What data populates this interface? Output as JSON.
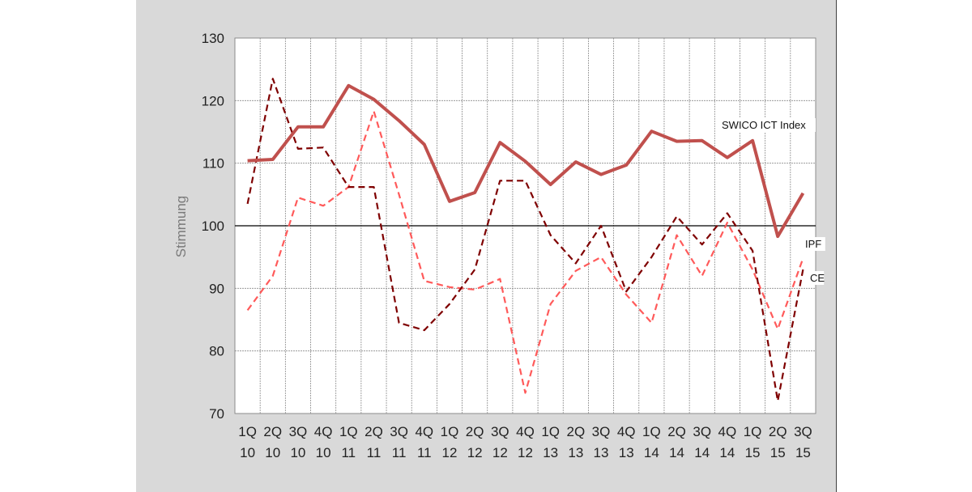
{
  "chart_data": {
    "type": "line",
    "ylabel": "Stimmung",
    "ylim": [
      70,
      130
    ],
    "yticks": [
      70,
      80,
      90,
      100,
      110,
      120,
      130
    ],
    "reference_line": 100,
    "grid": true,
    "categories": [
      [
        "1Q",
        "10"
      ],
      [
        "2Q",
        "10"
      ],
      [
        "3Q",
        "10"
      ],
      [
        "4Q",
        "10"
      ],
      [
        "1Q",
        "11"
      ],
      [
        "2Q",
        "11"
      ],
      [
        "3Q",
        "11"
      ],
      [
        "4Q",
        "11"
      ],
      [
        "1Q",
        "12"
      ],
      [
        "2Q",
        "12"
      ],
      [
        "3Q",
        "12"
      ],
      [
        "4Q",
        "12"
      ],
      [
        "1Q",
        "13"
      ],
      [
        "2Q",
        "13"
      ],
      [
        "3Q",
        "13"
      ],
      [
        "4Q",
        "13"
      ],
      [
        "1Q",
        "14"
      ],
      [
        "2Q",
        "14"
      ],
      [
        "3Q",
        "14"
      ],
      [
        "4Q",
        "14"
      ],
      [
        "1Q",
        "15"
      ],
      [
        "2Q",
        "15"
      ],
      [
        "3Q",
        "15"
      ]
    ],
    "series": [
      {
        "name": "SWICO ICT Index",
        "color": "#c0504d",
        "style": "solid",
        "values": [
          110.4,
          110.6,
          115.8,
          115.8,
          122.4,
          120.2,
          116.8,
          113.0,
          103.9,
          105.3,
          113.3,
          110.3,
          106.6,
          110.2,
          108.2,
          109.7,
          115.1,
          113.5,
          113.6,
          110.9,
          113.6,
          98.3,
          105.2
        ]
      },
      {
        "name": "IPF",
        "color": "#7f0000",
        "style": "dashed",
        "values": [
          103.5,
          123.5,
          112.3,
          112.5,
          106.2,
          106.2,
          84.5,
          83.3,
          87.5,
          93.0,
          107.2,
          107.2,
          98.5,
          94.0,
          100.0,
          89.5,
          95.0,
          101.5,
          97.0,
          102.0,
          96.0,
          72.0,
          93.0
        ]
      },
      {
        "name": "CE",
        "color": "#ff5a5a",
        "style": "dashed",
        "values": [
          86.5,
          92.0,
          104.5,
          103.2,
          106.2,
          118.3,
          105.0,
          91.2,
          90.2,
          89.8,
          91.5,
          73.3,
          87.5,
          92.8,
          95.0,
          89.0,
          84.5,
          98.5,
          92.0,
          100.5,
          93.0,
          83.5,
          94.8
        ]
      }
    ]
  },
  "colors": {
    "panel_background": "#d9d9d9",
    "plot_background": "#ffffff",
    "grid": "#8c8c8c",
    "reference_line": "#000000"
  }
}
